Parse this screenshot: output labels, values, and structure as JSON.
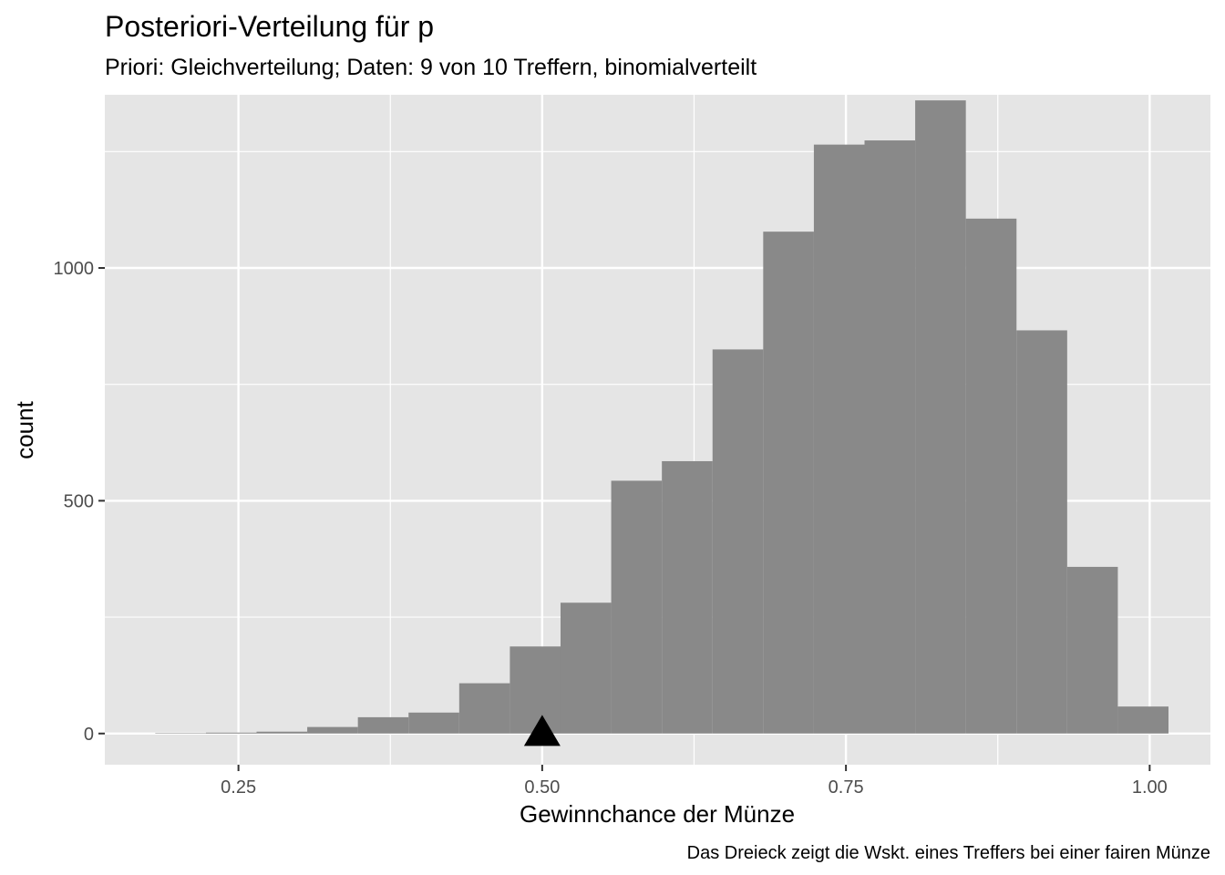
{
  "chart_data": {
    "type": "bar",
    "title": "Posteriori-Verteilung für p",
    "subtitle": "Priori: Gleichverteilung; Daten: 9 von 10 Treffern, binomialverteilt",
    "xlabel": "Gewinnchance der Münze",
    "ylabel": "count",
    "caption": "Das Dreieck zeigt die Wskt. eines Treffers bei einer fairen Münze",
    "xlim": [
      0.14,
      1.05
    ],
    "ylim": [
      -67,
      1372
    ],
    "x_ticks": [
      0.25,
      0.5,
      0.75,
      1.0
    ],
    "x_tick_labels": [
      "0.25",
      "0.50",
      "0.75",
      "1.00"
    ],
    "y_ticks": [
      0,
      500,
      1000
    ],
    "y_tick_labels": [
      "0",
      "500",
      "1000"
    ],
    "grid": true,
    "bin_width": 0.0417,
    "bins": [
      {
        "x0": 0.1815,
        "x1": 0.2232,
        "count": 1
      },
      {
        "x0": 0.2232,
        "x1": 0.2649,
        "count": 2
      },
      {
        "x0": 0.2649,
        "x1": 0.3066,
        "count": 4
      },
      {
        "x0": 0.3066,
        "x1": 0.3483,
        "count": 14
      },
      {
        "x0": 0.3483,
        "x1": 0.39,
        "count": 35
      },
      {
        "x0": 0.39,
        "x1": 0.4317,
        "count": 45
      },
      {
        "x0": 0.4317,
        "x1": 0.4734,
        "count": 108
      },
      {
        "x0": 0.4734,
        "x1": 0.5151,
        "count": 187
      },
      {
        "x0": 0.5151,
        "x1": 0.5568,
        "count": 281
      },
      {
        "x0": 0.5568,
        "x1": 0.5985,
        "count": 543
      },
      {
        "x0": 0.5985,
        "x1": 0.6402,
        "count": 585
      },
      {
        "x0": 0.6402,
        "x1": 0.6819,
        "count": 825
      },
      {
        "x0": 0.6819,
        "x1": 0.7236,
        "count": 1078
      },
      {
        "x0": 0.7236,
        "x1": 0.7653,
        "count": 1265
      },
      {
        "x0": 0.7653,
        "x1": 0.807,
        "count": 1274
      },
      {
        "x0": 0.807,
        "x1": 0.8487,
        "count": 1360
      },
      {
        "x0": 0.8487,
        "x1": 0.8904,
        "count": 1106
      },
      {
        "x0": 0.8904,
        "x1": 0.9321,
        "count": 866
      },
      {
        "x0": 0.9321,
        "x1": 0.9738,
        "count": 358
      },
      {
        "x0": 0.9738,
        "x1": 1.0155,
        "count": 58
      }
    ],
    "marker": {
      "shape": "triangle",
      "x": 0.5,
      "y": 0
    },
    "colors": {
      "panel": "#e5e5e5",
      "grid": "#ffffff",
      "bar": "#898989",
      "marker": "#000000"
    }
  }
}
